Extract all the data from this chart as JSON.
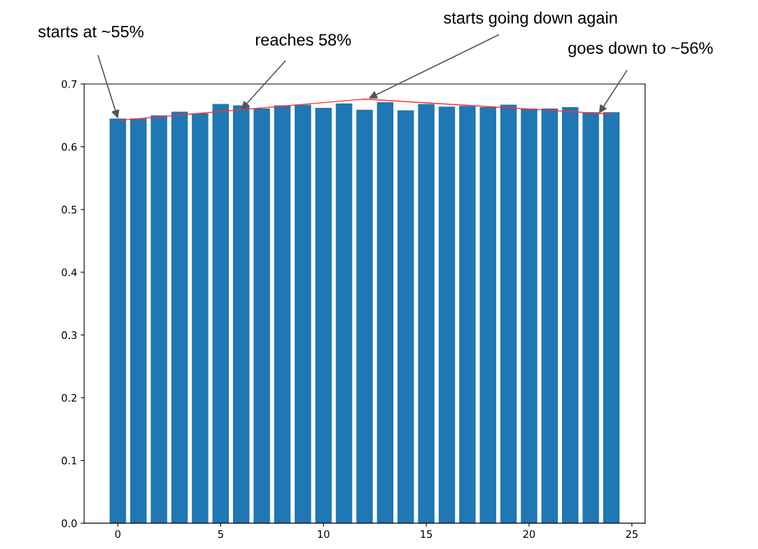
{
  "chart_data": {
    "type": "bar",
    "x": [
      0,
      1,
      2,
      3,
      4,
      5,
      6,
      7,
      8,
      9,
      10,
      11,
      12,
      13,
      14,
      15,
      16,
      17,
      18,
      19,
      20,
      21,
      22,
      23,
      24
    ],
    "series": [
      {
        "color": "#1f77b4",
        "values": [
          0.645,
          0.645,
          0.65,
          0.656,
          0.653,
          0.668,
          0.666,
          0.661,
          0.666,
          0.667,
          0.662,
          0.669,
          0.659,
          0.671,
          0.658,
          0.668,
          0.664,
          0.665,
          0.663,
          0.667,
          0.661,
          0.661,
          0.663,
          0.655,
          0.655
        ]
      },
      {
        "type": "line",
        "color": "#ff3030",
        "x": [
          0,
          12,
          24
        ],
        "values": [
          0.642,
          0.676,
          0.652
        ]
      }
    ],
    "xlim": [
      -1.64,
      25.64
    ],
    "xticks": [
      0,
      5,
      10,
      15,
      20,
      25
    ],
    "ylim": [
      0,
      0.7
    ],
    "yticks": [
      {
        "value": 0,
        "label": "0.0"
      },
      0.1,
      0.2,
      0.3,
      0.4,
      0.5,
      0.6,
      0.7
    ],
    "grid": false,
    "legend": false,
    "annotations": [
      {
        "text": "starts at ~55%",
        "x": 0,
        "y": 0.645
      },
      {
        "text": "reaches 58%",
        "x": 6,
        "y": 0.659
      },
      {
        "text": "starts going down again",
        "x": 12.2,
        "y": 0.677
      },
      {
        "text": "goes down to ~56%",
        "x": 23.4,
        "y": 0.653
      }
    ]
  }
}
